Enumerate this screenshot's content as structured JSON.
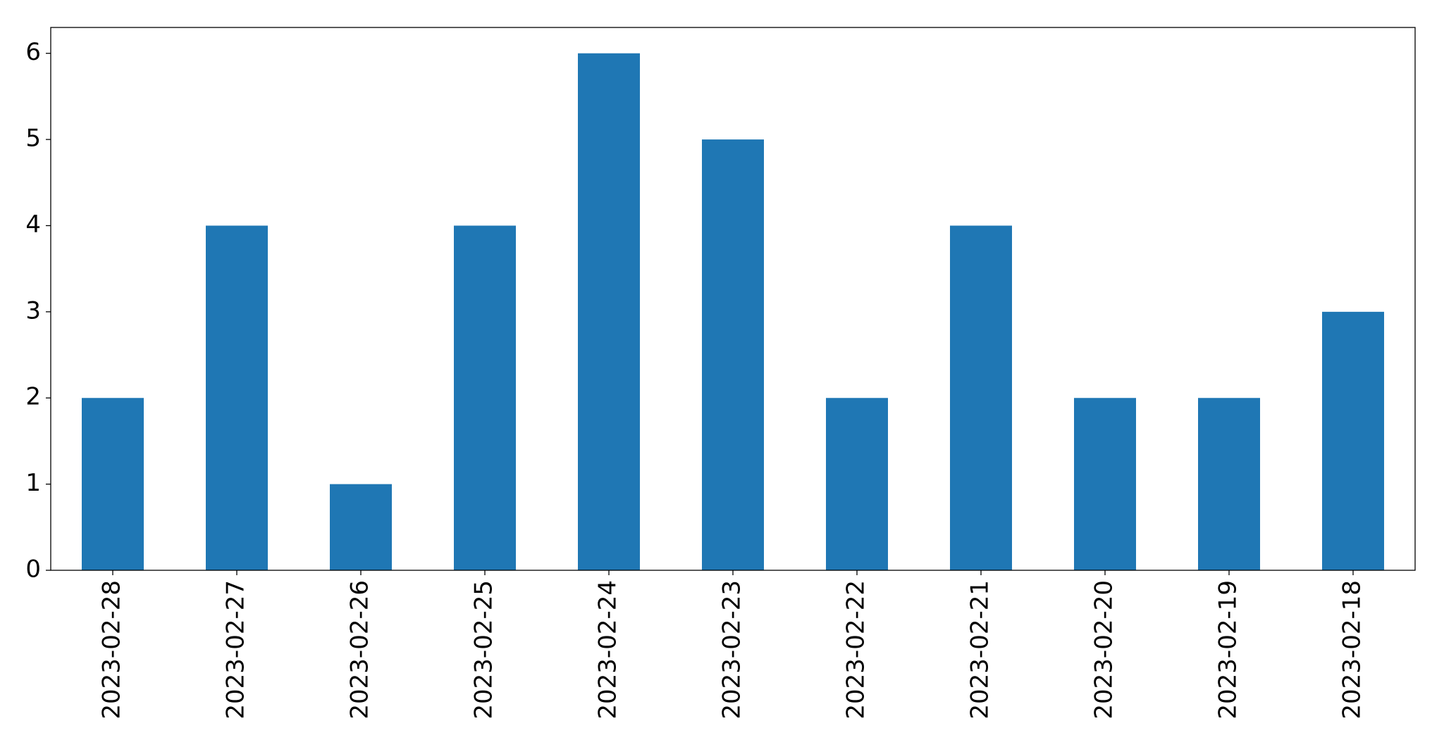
{
  "chart_data": {
    "type": "bar",
    "categories": [
      "2023-02-28",
      "2023-02-27",
      "2023-02-26",
      "2023-02-25",
      "2023-02-24",
      "2023-02-23",
      "2023-02-22",
      "2023-02-21",
      "2023-02-20",
      "2023-02-19",
      "2023-02-18"
    ],
    "values": [
      2,
      4,
      1,
      4,
      6,
      5,
      2,
      4,
      2,
      2,
      3
    ],
    "color": "#1f77b4",
    "ylim": [
      0,
      6.3
    ],
    "yticks": [
      0,
      1,
      2,
      3,
      4,
      5,
      6
    ],
    "grid": false
  }
}
